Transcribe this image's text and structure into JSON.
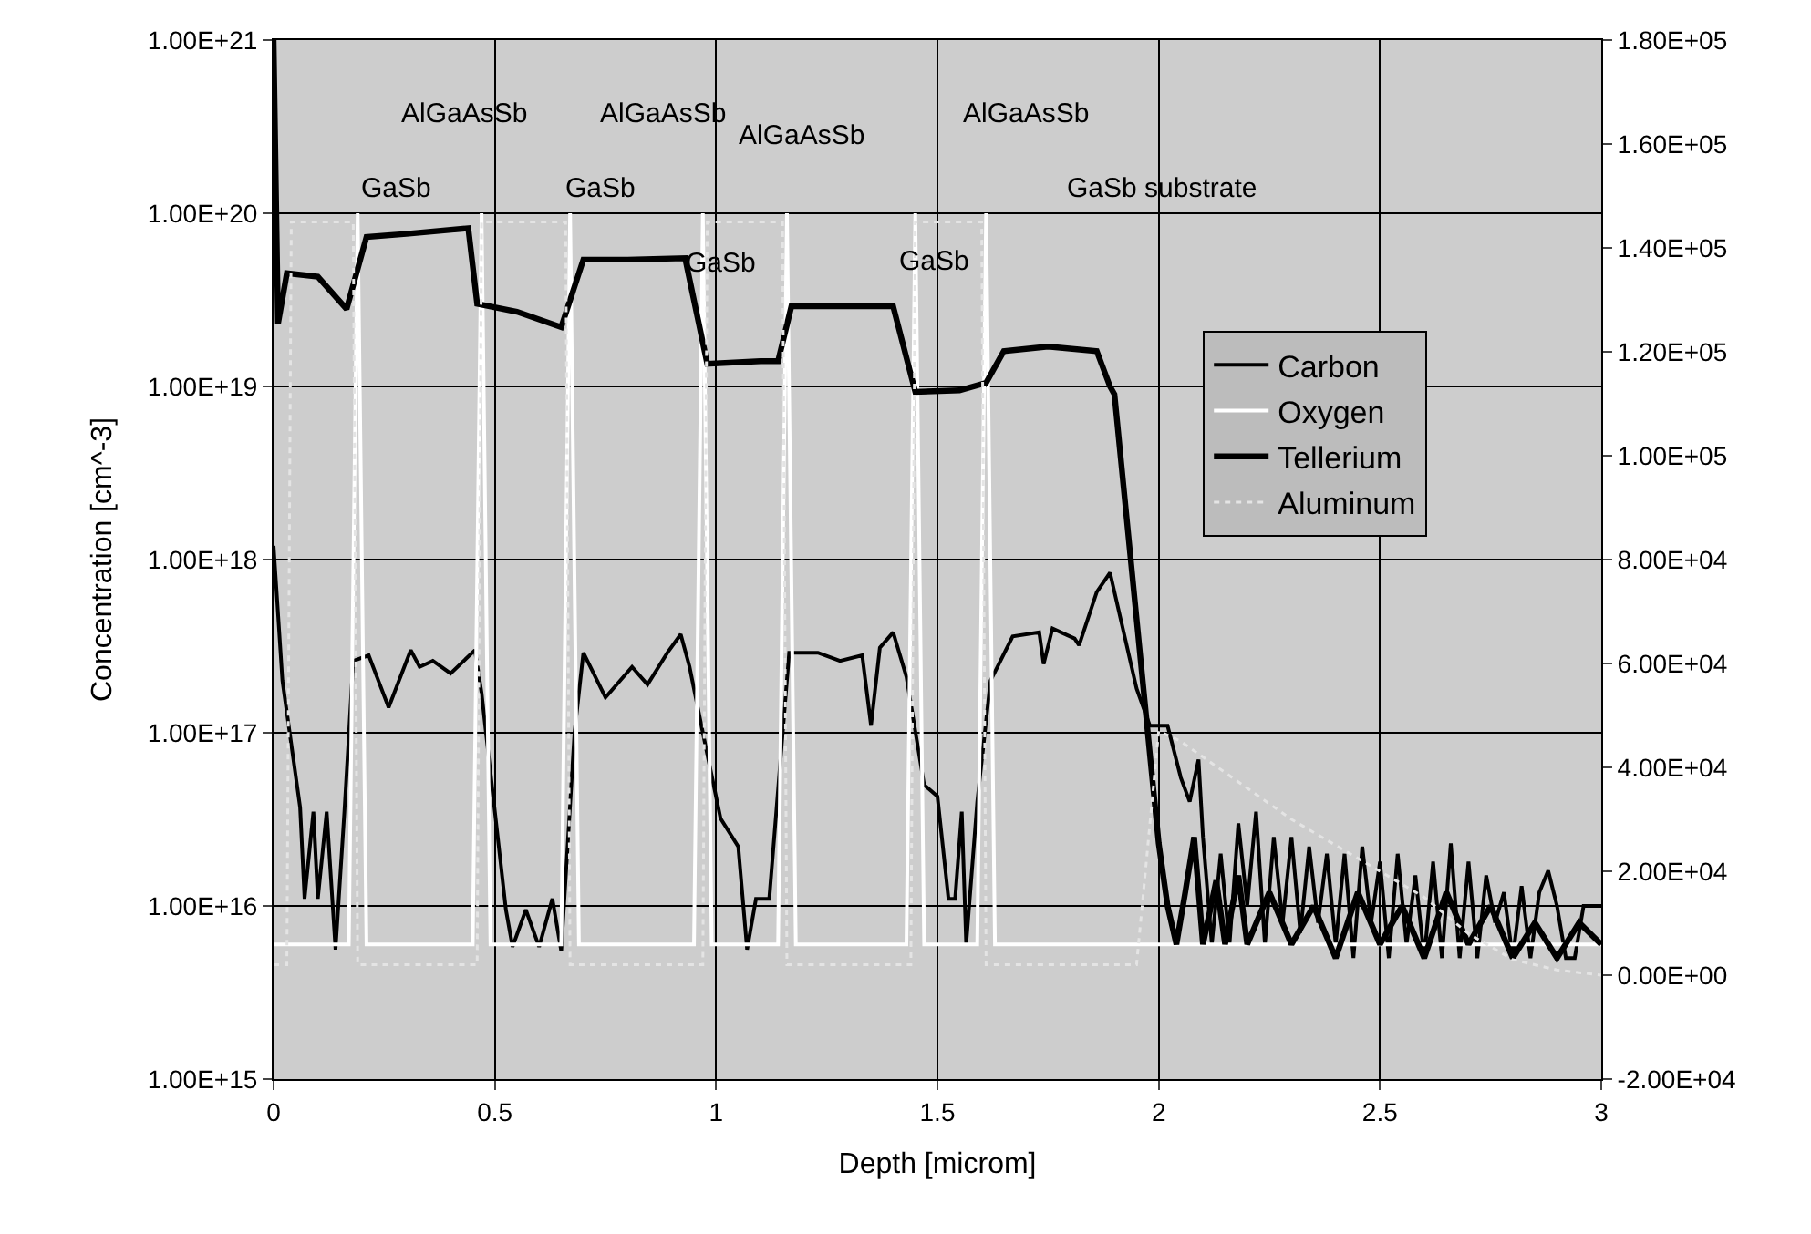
{
  "chart_data": {
    "type": "line",
    "xlabel": "Depth [microm]",
    "ylabel": "Concentration [cm^-3]",
    "xlim": [
      0,
      3
    ],
    "xticks": [
      0,
      0.5,
      1,
      1.5,
      2,
      2.5,
      3
    ],
    "ylim": [
      1000000000000000.0,
      1e+21
    ],
    "log": "y",
    "yticks": [
      {
        "value": 1000000000000000.0,
        "label": "1.00E+15"
      },
      {
        "value": 1e+16,
        "label": "1.00E+16"
      },
      {
        "value": 1e+17,
        "label": "1.00E+17"
      },
      {
        "value": 1e+18,
        "label": "1.00E+18"
      },
      {
        "value": 1e+19,
        "label": "1.00E+19"
      },
      {
        "value": 1e+20,
        "label": "1.00E+20"
      },
      {
        "value": 1e+21,
        "label": "1.00E+21"
      }
    ],
    "y2lim": [
      -20000,
      180000
    ],
    "y2ticks": [
      {
        "value": -20000,
        "label": "-2.00E+04"
      },
      {
        "value": 0,
        "label": "0.00E+00"
      },
      {
        "value": 20000,
        "label": "2.00E+04"
      },
      {
        "value": 40000,
        "label": "4.00E+04"
      },
      {
        "value": 60000,
        "label": "6.00E+04"
      },
      {
        "value": 80000,
        "label": "8.00E+04"
      },
      {
        "value": 100000,
        "label": "1.00E+05"
      },
      {
        "value": 120000,
        "label": "1.20E+05"
      },
      {
        "value": 140000,
        "label": "1.40E+05"
      },
      {
        "value": 160000,
        "label": "1.60E+05"
      },
      {
        "value": 180000,
        "label": "1.80E+05"
      }
    ],
    "grid": true,
    "legend": "right",
    "series": [
      {
        "name": "Carbon",
        "color": "#000000",
        "line_style": "solid",
        "x": [
          0,
          0.02,
          0.06,
          0.07,
          0.09,
          0.1,
          0.12,
          0.14,
          0.16,
          0.18,
          0.215,
          0.26,
          0.31,
          0.33,
          0.36,
          0.4,
          0.455,
          0.47,
          0.48,
          0.525,
          0.54,
          0.57,
          0.6,
          0.63,
          0.65,
          0.68,
          0.7,
          0.75,
          0.81,
          0.845,
          0.89,
          0.92,
          0.94,
          0.97,
          1.01,
          1.05,
          1.07,
          1.09,
          1.12,
          1.165,
          1.23,
          1.28,
          1.33,
          1.35,
          1.37,
          1.4,
          1.43,
          1.47,
          1.5,
          1.525,
          1.54,
          1.555,
          1.565,
          1.59,
          1.62,
          1.67,
          1.73,
          1.74,
          1.76,
          1.81,
          1.82,
          1.86,
          1.89,
          1.95,
          1.98,
          2.02,
          2.05,
          2.07,
          2.09,
          2.1,
          2.12,
          2.14,
          2.16,
          2.18,
          2.2,
          2.22,
          2.24,
          2.26,
          2.28,
          2.3,
          2.32,
          2.34,
          2.36,
          2.38,
          2.4,
          2.42,
          2.44,
          2.46,
          2.48,
          2.5,
          2.52,
          2.54,
          2.56,
          2.58,
          2.6,
          2.62,
          2.64,
          2.66,
          2.68,
          2.7,
          2.72,
          2.74,
          2.76,
          2.78,
          2.8,
          2.82,
          2.84,
          2.86,
          2.88,
          2.9,
          2.92,
          2.94,
          2.96,
          2.98,
          3.0
        ],
        "values": [
          1.2e+18,
          2e+17,
          3.7e+16,
          1.1e+16,
          3.5e+16,
          1.1e+16,
          3.5e+16,
          5600000000000000.0,
          3.5e+16,
          2.6e+17,
          2.8e+17,
          1.4e+17,
          3e+17,
          2.4e+17,
          2.6e+17,
          2.2e+17,
          3e+17,
          1.7e+17,
          1e+17,
          9500000000000000.0,
          5800000000000000.0,
          9500000000000000.0,
          5800000000000000.0,
          1.1e+16,
          5500000000000000.0,
          1e+17,
          2.9e+17,
          1.6e+17,
          2.4e+17,
          1.9e+17,
          2.9e+17,
          3.7e+17,
          2.4e+17,
          1e+17,
          3.2e+16,
          2.2e+16,
          5600000000000000.0,
          1.1e+16,
          1.1e+16,
          2.9e+17,
          2.9e+17,
          2.6e+17,
          2.8e+17,
          1.1e+17,
          3.1e+17,
          3.8e+17,
          2.1e+17,
          5e+16,
          4.3e+16,
          1.1e+16,
          1.1e+16,
          3.5e+16,
          6000000000000000.0,
          4e+16,
          2e+17,
          3.6e+17,
          3.8e+17,
          2.5e+17,
          4e+17,
          3.5e+17,
          3.2e+17,
          6.5e+17,
          8.4e+17,
          1.8e+17,
          1.1e+17,
          1.1e+17,
          5.5e+16,
          4e+16,
          7e+16,
          2.5e+16,
          6000000000000000.0,
          2e+16,
          6000000000000000.0,
          3e+16,
          1e+16,
          3.5e+16,
          6000000000000000.0,
          2.5e+16,
          8000000000000000.0,
          2.5e+16,
          7000000000000000.0,
          2.2e+16,
          8000000000000000.0,
          2e+16,
          6000000000000000.0,
          2e+16,
          5000000000000000.0,
          2.2e+16,
          8000000000000000.0,
          1.8e+16,
          5000000000000000.0,
          2e+16,
          6000000000000000.0,
          1.5e+16,
          5000000000000000.0,
          1.8e+16,
          5000000000000000.0,
          2.3e+16,
          5000000000000000.0,
          1.8e+16,
          5000000000000000.0,
          1.5e+16,
          8000000000000000.0,
          1.2e+16,
          5000000000000000.0,
          1.3e+16,
          5000000000000000.0,
          1.2e+16,
          1.6e+16,
          1e+16,
          5000000000000000.0,
          5000000000000000.0,
          1e+16,
          1e+16,
          1e+16
        ]
      },
      {
        "name": "Oxygen",
        "color": "#ffffff",
        "line_style": "solid",
        "x": [
          0.0,
          0.17,
          0.19,
          0.21,
          0.45,
          0.47,
          0.49,
          0.65,
          0.67,
          0.69,
          0.95,
          0.97,
          0.99,
          1.14,
          1.16,
          1.18,
          1.43,
          1.45,
          1.47,
          1.59,
          1.61,
          1.63,
          2.0,
          3.0
        ],
        "values": [
          6000000000000000.0,
          6000000000000000.0,
          1e+20,
          6000000000000000.0,
          6000000000000000.0,
          1e+20,
          6000000000000000.0,
          6000000000000000.0,
          1e+20,
          6000000000000000.0,
          6000000000000000.0,
          1e+20,
          6000000000000000.0,
          6000000000000000.0,
          1e+20,
          6000000000000000.0,
          6000000000000000.0,
          1e+20,
          6000000000000000.0,
          6000000000000000.0,
          1e+20,
          6000000000000000.0,
          6000000000000000.0,
          6000000000000000.0
        ]
      },
      {
        "name": "Tellerium",
        "color": "#000000",
        "line_style": "solid",
        "x": [
          0,
          0.01,
          0.03,
          0.1,
          0.165,
          0.21,
          0.3,
          0.44,
          0.46,
          0.55,
          0.65,
          0.7,
          0.8,
          0.93,
          0.98,
          1.1,
          1.14,
          1.17,
          1.3,
          1.4,
          1.45,
          1.55,
          1.61,
          1.65,
          1.75,
          1.86,
          1.89,
          1.9,
          2.0,
          2.02,
          2.04,
          2.06,
          2.08,
          2.1,
          2.13,
          2.15,
          2.18,
          2.2,
          2.25,
          2.3,
          2.35,
          2.4,
          2.45,
          2.5,
          2.55,
          2.6,
          2.65,
          2.7,
          2.75,
          2.8,
          2.85,
          2.9,
          2.95,
          3.0
        ],
        "values": [
          1e+21,
          2.3e+19,
          4.5e+19,
          4.3e+19,
          2.8e+19,
          7.3e+19,
          7.6e+19,
          8.2e+19,
          3e+19,
          2.7e+19,
          2.2e+19,
          5.4e+19,
          5.4e+19,
          5.5e+19,
          1.35e+19,
          1.4e+19,
          1.4e+19,
          2.9e+19,
          2.9e+19,
          2.9e+19,
          9.3e+18,
          9.5e+18,
          1.05e+19,
          1.6e+19,
          1.7e+19,
          1.6e+19,
          1e+19,
          9e+18,
          2.3e+16,
          1e+16,
          6000000000000000.0,
          1.2e+16,
          2.5e+16,
          6000000000000000.0,
          1.4e+16,
          6000000000000000.0,
          1.5e+16,
          6000000000000000.0,
          1.2e+16,
          6000000000000000.0,
          1e+16,
          5000000000000000.0,
          1.2e+16,
          6000000000000000.0,
          1e+16,
          5000000000000000.0,
          1.2e+16,
          6000000000000000.0,
          1e+16,
          5000000000000000.0,
          8000000000000000.0,
          5000000000000000.0,
          8000000000000000.0,
          6000000000000000.0
        ]
      },
      {
        "name": "Aluminum",
        "color": "#e4e4e4",
        "line_style": "dotted",
        "axis": "y2",
        "x": [
          0,
          0.03,
          0.04,
          0.18,
          0.19,
          0.46,
          0.47,
          0.66,
          0.67,
          0.97,
          0.98,
          1.15,
          1.16,
          1.44,
          1.45,
          1.6,
          1.61,
          1.95,
          2.0,
          2.05,
          2.1,
          2.2,
          2.3,
          2.4,
          2.5,
          2.6,
          2.7,
          2.8,
          2.9,
          3.0
        ],
        "values": [
          2000,
          2000,
          145000,
          145000,
          2000,
          2000,
          145000,
          145000,
          2000,
          2000,
          145000,
          145000,
          2000,
          2000,
          145000,
          145000,
          2000,
          2000,
          47000,
          45000,
          42000,
          36000,
          30000,
          25000,
          20000,
          15000,
          8000,
          3000,
          1000,
          0
        ]
      }
    ],
    "annotations": [
      "AlGaAsSb",
      "GaSb",
      "AlGaAsSb",
      "GaSb",
      "AlGaAsSb",
      "GaSb",
      "AlGaAsSb",
      "GaSb",
      "GaSb substrate"
    ]
  }
}
